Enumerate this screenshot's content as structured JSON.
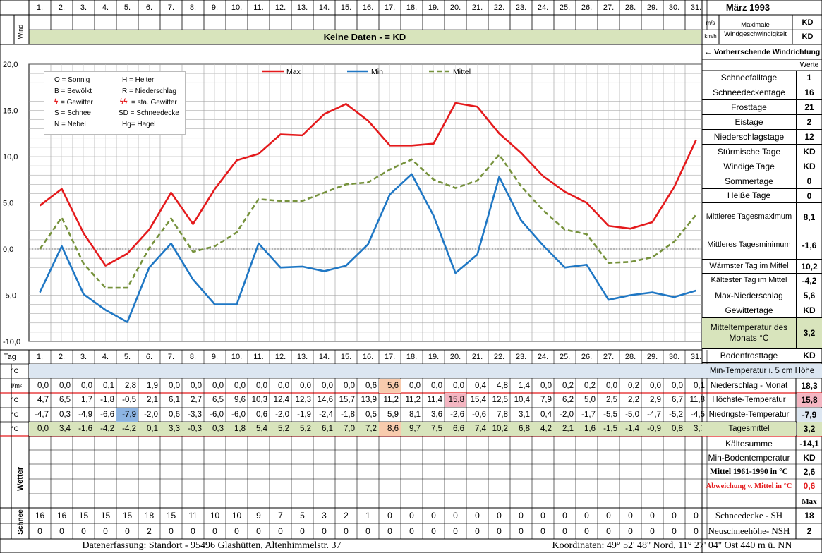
{
  "header": {
    "month_title": "März 1993",
    "days": [
      "1.",
      "2.",
      "3.",
      "4.",
      "5.",
      "6.",
      "7.",
      "8.",
      "9.",
      "10.",
      "11.",
      "12.",
      "13.",
      "14.",
      "15.",
      "16.",
      "17.",
      "18.",
      "19.",
      "20.",
      "21.",
      "22.",
      "23.",
      "24.",
      "25.",
      "26.",
      "27.",
      "28.",
      "29.",
      "30.",
      "31."
    ],
    "unit_ms": "m/s",
    "unit_kmh": "km/h",
    "max_wind_label": "Maximale Windgeschwindigkeit",
    "max_wind_ms": "KD",
    "max_wind_kmh": "KD",
    "wind_label": "Wind",
    "no_data_banner": "Keine Daten -  = KD",
    "prevailing_wind": "← Vorherrschende Windrichtung"
  },
  "legend_symbols": [
    [
      "O = Sonnig",
      "H = Heiter"
    ],
    [
      "B = Bewölkt",
      "R = Niederschlag"
    ],
    [
      "= Gewitter",
      "= sta. Gewitter"
    ],
    [
      "S = Schnee",
      "SD = Schneedecke"
    ],
    [
      "N = Nebel",
      "Hg= Hagel"
    ]
  ],
  "legend_symbol_glyphs": [
    "ϟ",
    "ϟϟ"
  ],
  "chart_data": {
    "type": "line",
    "x": [
      1,
      2,
      3,
      4,
      5,
      6,
      7,
      8,
      9,
      10,
      11,
      12,
      13,
      14,
      15,
      16,
      17,
      18,
      19,
      20,
      21,
      22,
      23,
      24,
      25,
      26,
      27,
      28,
      29,
      30,
      31
    ],
    "ylim": [
      -10,
      20
    ],
    "yticks": [
      "20,0",
      "15,0",
      "10,0",
      "5,0",
      "0,0",
      "-5,0",
      "-10,0"
    ],
    "grid": true,
    "legend_position": "top",
    "series": [
      {
        "name": "Max",
        "color": "#e41a1c",
        "dash": false,
        "values": [
          4.7,
          6.5,
          1.7,
          -1.8,
          -0.5,
          2.1,
          6.1,
          2.7,
          6.5,
          9.6,
          10.3,
          12.4,
          12.3,
          14.6,
          15.7,
          13.9,
          11.2,
          11.2,
          11.4,
          15.8,
          15.4,
          12.5,
          10.4,
          7.9,
          6.2,
          5.0,
          2.5,
          2.2,
          2.9,
          6.7,
          11.8
        ]
      },
      {
        "name": "Min",
        "color": "#1f77c4",
        "dash": false,
        "values": [
          -4.7,
          0.3,
          -4.9,
          -6.6,
          -7.9,
          -2.0,
          0.6,
          -3.3,
          -6.0,
          -6.0,
          0.6,
          -2.0,
          -1.9,
          -2.4,
          -1.8,
          0.5,
          5.9,
          8.1,
          3.6,
          -2.6,
          -0.6,
          7.8,
          3.1,
          0.4,
          -2.0,
          -1.7,
          -5.5,
          -5.0,
          -4.7,
          -5.2,
          -4.5
        ]
      },
      {
        "name": "Mittel",
        "color": "#76923c",
        "dash": true,
        "values": [
          0.0,
          3.4,
          -1.6,
          -4.2,
          -4.2,
          0.1,
          3.3,
          -0.3,
          0.3,
          1.8,
          5.4,
          5.2,
          5.2,
          6.1,
          7.0,
          7.2,
          8.6,
          9.7,
          7.5,
          6.6,
          7.4,
          10.2,
          6.8,
          4.2,
          2.1,
          1.6,
          -1.5,
          -1.4,
          -0.9,
          0.8,
          3.7
        ]
      }
    ]
  },
  "table": {
    "tag_label": "Tag",
    "rows": [
      {
        "unit": "°C",
        "values": [
          "",
          "",
          "",
          "",
          "",
          "",
          "",
          "",
          "",
          "",
          "",
          "",
          "",
          "",
          "",
          "",
          "",
          "",
          "",
          "",
          "",
          "",
          "",
          "",
          "",
          "",
          "",
          "",
          "",
          "",
          ""
        ],
        "side_label": "Min-Temperatur i. 5 cm Höhe",
        "side_value": ""
      },
      {
        "unit": "l/m²",
        "values": [
          "0,0",
          "0,0",
          "0,0",
          "0,1",
          "2,8",
          "1,9",
          "0,0",
          "0,0",
          "0,0",
          "0,0",
          "0,0",
          "0,0",
          "0,0",
          "0,0",
          "0,0",
          "0,6",
          "5,6",
          "0,0",
          "0,0",
          "0,0",
          "0,4",
          "4,8",
          "1,4",
          "0,0",
          "0,2",
          "0,2",
          "0,0",
          "0,2",
          "0,0",
          "0,0",
          "0,1"
        ],
        "side_label": "Niederschlag - Monat",
        "side_value": "18,3"
      },
      {
        "unit": "°C",
        "values": [
          "4,7",
          "6,5",
          "1,7",
          "-1,8",
          "-0,5",
          "2,1",
          "6,1",
          "2,7",
          "6,5",
          "9,6",
          "10,3",
          "12,4",
          "12,3",
          "14,6",
          "15,7",
          "13,9",
          "11,2",
          "11,2",
          "11,4",
          "15,8",
          "15,4",
          "12,5",
          "10,4",
          "7,9",
          "6,2",
          "5,0",
          "2,5",
          "2,2",
          "2,9",
          "6,7",
          "11,8"
        ],
        "side_label": "Höchste-Temperatur",
        "side_value": "15,8"
      },
      {
        "unit": "°C",
        "values": [
          "-4,7",
          "0,3",
          "-4,9",
          "-6,6",
          "-7,9",
          "-2,0",
          "0,6",
          "-3,3",
          "-6,0",
          "-6,0",
          "0,6",
          "-2,0",
          "-1,9",
          "-2,4",
          "-1,8",
          "0,5",
          "5,9",
          "8,1",
          "3,6",
          "-2,6",
          "-0,6",
          "7,8",
          "3,1",
          "0,4",
          "-2,0",
          "-1,7",
          "-5,5",
          "-5,0",
          "-4,7",
          "-5,2",
          "-4,5"
        ],
        "side_label": "Niedrigste-Temperatur",
        "side_value": "-7,9"
      },
      {
        "unit": "°C",
        "values": [
          "0,0",
          "3,4",
          "-1,6",
          "-4,2",
          "-4,2",
          "0,1",
          "3,3",
          "-0,3",
          "0,3",
          "1,8",
          "5,4",
          "5,2",
          "5,2",
          "6,1",
          "7,0",
          "7,2",
          "8,6",
          "9,7",
          "7,5",
          "6,6",
          "7,4",
          "10,2",
          "6,8",
          "4,2",
          "2,1",
          "1,6",
          "-1,5",
          "-1,4",
          "-0,9",
          "0,8",
          "3,7"
        ],
        "side_label": "Tagesmittel",
        "side_value": "3,2"
      }
    ],
    "snow_depth": [
      16,
      16,
      15,
      15,
      15,
      18,
      15,
      11,
      10,
      10,
      9,
      7,
      5,
      3,
      2,
      1,
      0,
      0,
      0,
      0,
      0,
      0,
      0,
      0,
      0,
      0,
      0,
      0,
      0,
      0,
      0
    ],
    "new_snow": [
      0,
      0,
      0,
      0,
      0,
      2,
      0,
      0,
      0,
      0,
      0,
      0,
      0,
      0,
      0,
      0,
      0,
      0,
      0,
      0,
      0,
      0,
      0,
      0,
      0,
      0,
      0,
      0,
      0,
      0,
      0
    ],
    "wetter_label": "Wetter",
    "schnee_label": "Schnee"
  },
  "stats_panel": {
    "werte_label": "Werte",
    "items": [
      {
        "label": "Schneefalltage",
        "value": "1"
      },
      {
        "label": "Schneedeckentage",
        "value": "16"
      },
      {
        "label": "Frosttage",
        "value": "21"
      },
      {
        "label": "Eistage",
        "value": "2"
      },
      {
        "label": "Niederschlagstage",
        "value": "12"
      },
      {
        "label": "Stürmische Tage",
        "value": "KD"
      },
      {
        "label": "Windige Tage",
        "value": "KD"
      },
      {
        "label": "Sommertage",
        "value": "0"
      },
      {
        "label": "Heiße Tage",
        "value": "0"
      },
      {
        "label": "Mittleres Tagesmaximum",
        "value": "8,1"
      },
      {
        "label": "Mittleres Tagesminimum",
        "value": "-1,6"
      },
      {
        "label": "Wärmster Tag im Mittel",
        "value": "10,2"
      },
      {
        "label": "Kältester Tag im Mittel",
        "value": "-4,2"
      },
      {
        "label": "Max-Niederschlag",
        "value": "5,6"
      },
      {
        "label": "Gewittertage",
        "value": "KD"
      },
      {
        "label": "Mitteltemperatur des Monats °C",
        "value": "3,2"
      },
      {
        "label": "Bodenfrosttage",
        "value": "KD"
      }
    ],
    "lower": [
      {
        "label": "Kältesumme",
        "value": "-14,1"
      },
      {
        "label": "Min-Bodentemperatur",
        "value": "KD"
      },
      {
        "label": "Mittel 1961-1990 in °C",
        "value": "2,6"
      },
      {
        "label": "Abweichung v. Mittel in °C",
        "value": "0,6"
      }
    ],
    "max_label": "Max",
    "snow_rows": [
      {
        "label": "Schneedecke -   SH",
        "value": "18"
      },
      {
        "label": "Neuschneehöhe- NSH",
        "value": "2"
      }
    ]
  },
  "footer": {
    "left": "Datenerfassung:  Standort -   95496  Glashütten, Altenhimmelstr. 37",
    "right": "Koordinaten:  49° 52' 48'' Nord,  11° 27' 04'' Ost   440 m ü. NN"
  },
  "colors": {
    "highlight_orange": "#f8cbad",
    "highlight_pink": "#f4b6c2",
    "highlight_blue": "#8db4e2",
    "green_band": "#d8e4bc",
    "blue_band": "#dce6f1",
    "red_value": "#e41a1c"
  }
}
